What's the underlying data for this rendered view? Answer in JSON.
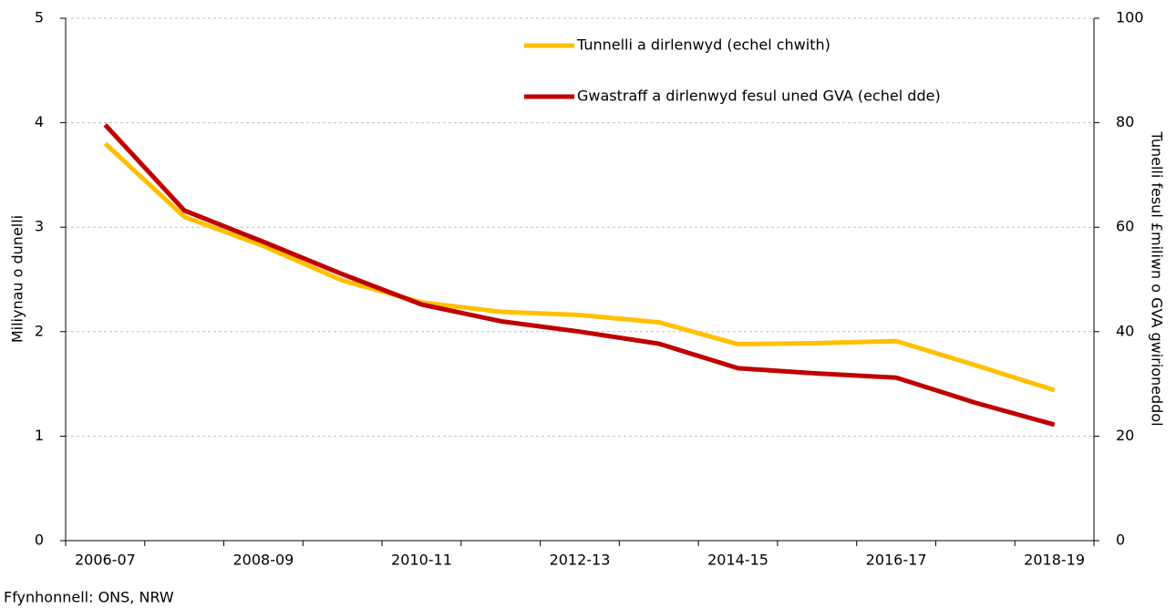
{
  "chart_data": {
    "type": "line",
    "categories": [
      "2006-07",
      null,
      "2008-09",
      null,
      "2010-11",
      null,
      "2012-13",
      null,
      "2014-15",
      null,
      "2016-17",
      null,
      "2018-19"
    ],
    "series": [
      {
        "name": "Tunnelli a dirlenwyd (echel chwith)",
        "color": "#ffc000",
        "axis": "y",
        "values": [
          3.8,
          3.1,
          2.82,
          2.49,
          2.28,
          2.19,
          2.16,
          2.09,
          1.88,
          1.89,
          1.91,
          1.68,
          1.44
        ]
      },
      {
        "name": "Gwastraff a dirlenwyd fesul uned GVA (echel dde)",
        "color": "#c00000",
        "axis": "y2",
        "values": [
          79.6,
          63.2,
          57.2,
          51,
          45.2,
          42,
          40,
          37.7,
          33,
          32,
          31.2,
          26.4,
          22.2
        ]
      }
    ],
    "ylabel": "Miliynau o dunelli",
    "y2label": "Tunelli fesul £miliwn o GVA gwirioneddol",
    "ylim": [
      0,
      5
    ],
    "yticks": [
      0,
      1,
      2,
      3,
      4,
      5
    ],
    "y2lim": [
      0,
      100
    ],
    "y2ticks": [
      0,
      20,
      40,
      60,
      80,
      100
    ],
    "grid": true,
    "legend": "upper right",
    "source": "Ffynhonnell: ONS, NRW"
  }
}
